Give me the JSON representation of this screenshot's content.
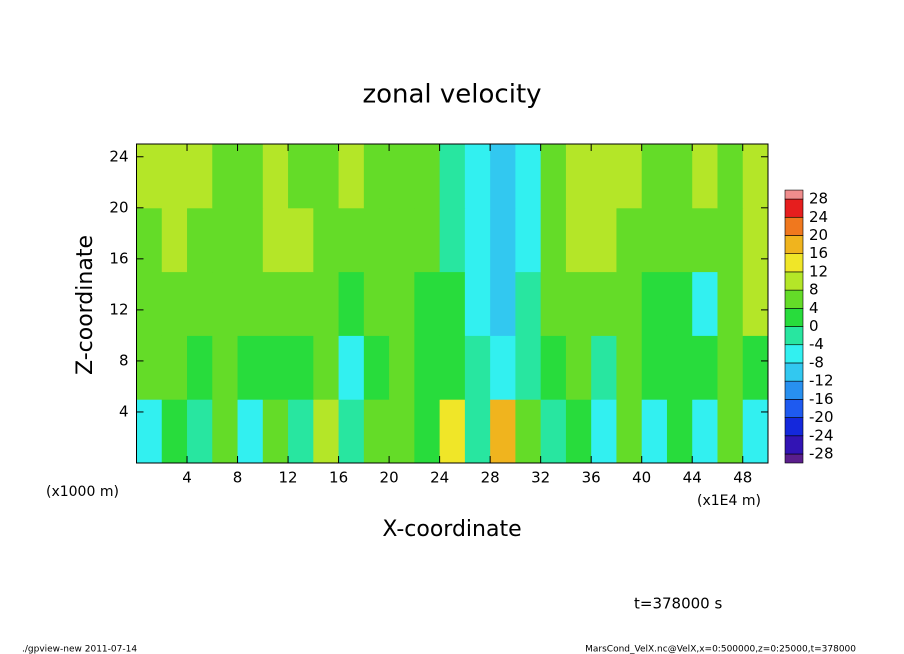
{
  "chart_data": {
    "type": "heatmap",
    "title": "zonal velocity",
    "x_label": "X-coordinate",
    "y_label": "Z-coordinate",
    "x_unit": "(x1000 m)",
    "x_unit_right": "(x1E4 m)",
    "time_label": "t=378000 s",
    "footer_left": "./gpview-new  2011-07-14",
    "footer_right": "MarsCond_VelX.nc@VelX,x=0:500000,z=0:25000,t=378000",
    "xlim": [
      0,
      50
    ],
    "ylim": [
      0,
      25
    ],
    "xticks": [
      4,
      8,
      12,
      16,
      20,
      24,
      28,
      32,
      36,
      40,
      44,
      48
    ],
    "yticks": [
      4,
      8,
      12,
      16,
      20,
      24
    ],
    "field": {
      "x": [
        1,
        3,
        5,
        7,
        9,
        11,
        13,
        15,
        17,
        19,
        21,
        23,
        25,
        27,
        29,
        31,
        33,
        35,
        37,
        39,
        41,
        43,
        45,
        47,
        49
      ],
      "y": [
        2.5,
        7.5,
        12.5,
        17.5,
        22.5
      ],
      "values": [
        [
          -6,
          2,
          -4,
          6,
          -6,
          4,
          -2,
          8,
          -4,
          6,
          4,
          2,
          14,
          -2,
          18,
          4,
          -4,
          2,
          -8,
          4,
          -6,
          2,
          -8,
          4,
          -6
        ],
        [
          4,
          6,
          2,
          4,
          2,
          0,
          2,
          4,
          -6,
          2,
          4,
          2,
          0,
          -2,
          -8,
          -4,
          2,
          4,
          -2,
          4,
          2,
          0,
          2,
          4,
          2
        ],
        [
          4,
          6,
          4,
          6,
          4,
          6,
          4,
          4,
          2,
          4,
          4,
          2,
          0,
          -6,
          -12,
          -4,
          4,
          6,
          4,
          4,
          2,
          2,
          -8,
          4,
          10
        ],
        [
          6,
          8,
          6,
          6,
          6,
          8,
          8,
          6,
          6,
          4,
          6,
          4,
          -4,
          -8,
          -10,
          -6,
          6,
          8,
          8,
          6,
          6,
          6,
          4,
          6,
          8
        ],
        [
          8,
          8,
          8,
          6,
          6,
          8,
          6,
          6,
          8,
          6,
          6,
          4,
          -4,
          -8,
          -12,
          -6,
          6,
          8,
          8,
          8,
          6,
          6,
          8,
          6,
          8
        ]
      ]
    },
    "colorbar": {
      "levels": [
        -28,
        -24,
        -20,
        -16,
        -12,
        -8,
        -4,
        0,
        4,
        8,
        12,
        16,
        20,
        24,
        28
      ],
      "colors": [
        "#5a1e8c",
        "#3214b4",
        "#1428dc",
        "#1e5af0",
        "#2890f0",
        "#32c8f0",
        "#32f0f0",
        "#28e6a0",
        "#28dc3c",
        "#64dc28",
        "#b4e628",
        "#f0e628",
        "#f0b41e",
        "#f0781e",
        "#e61e1e",
        "#f08c8c"
      ]
    }
  }
}
